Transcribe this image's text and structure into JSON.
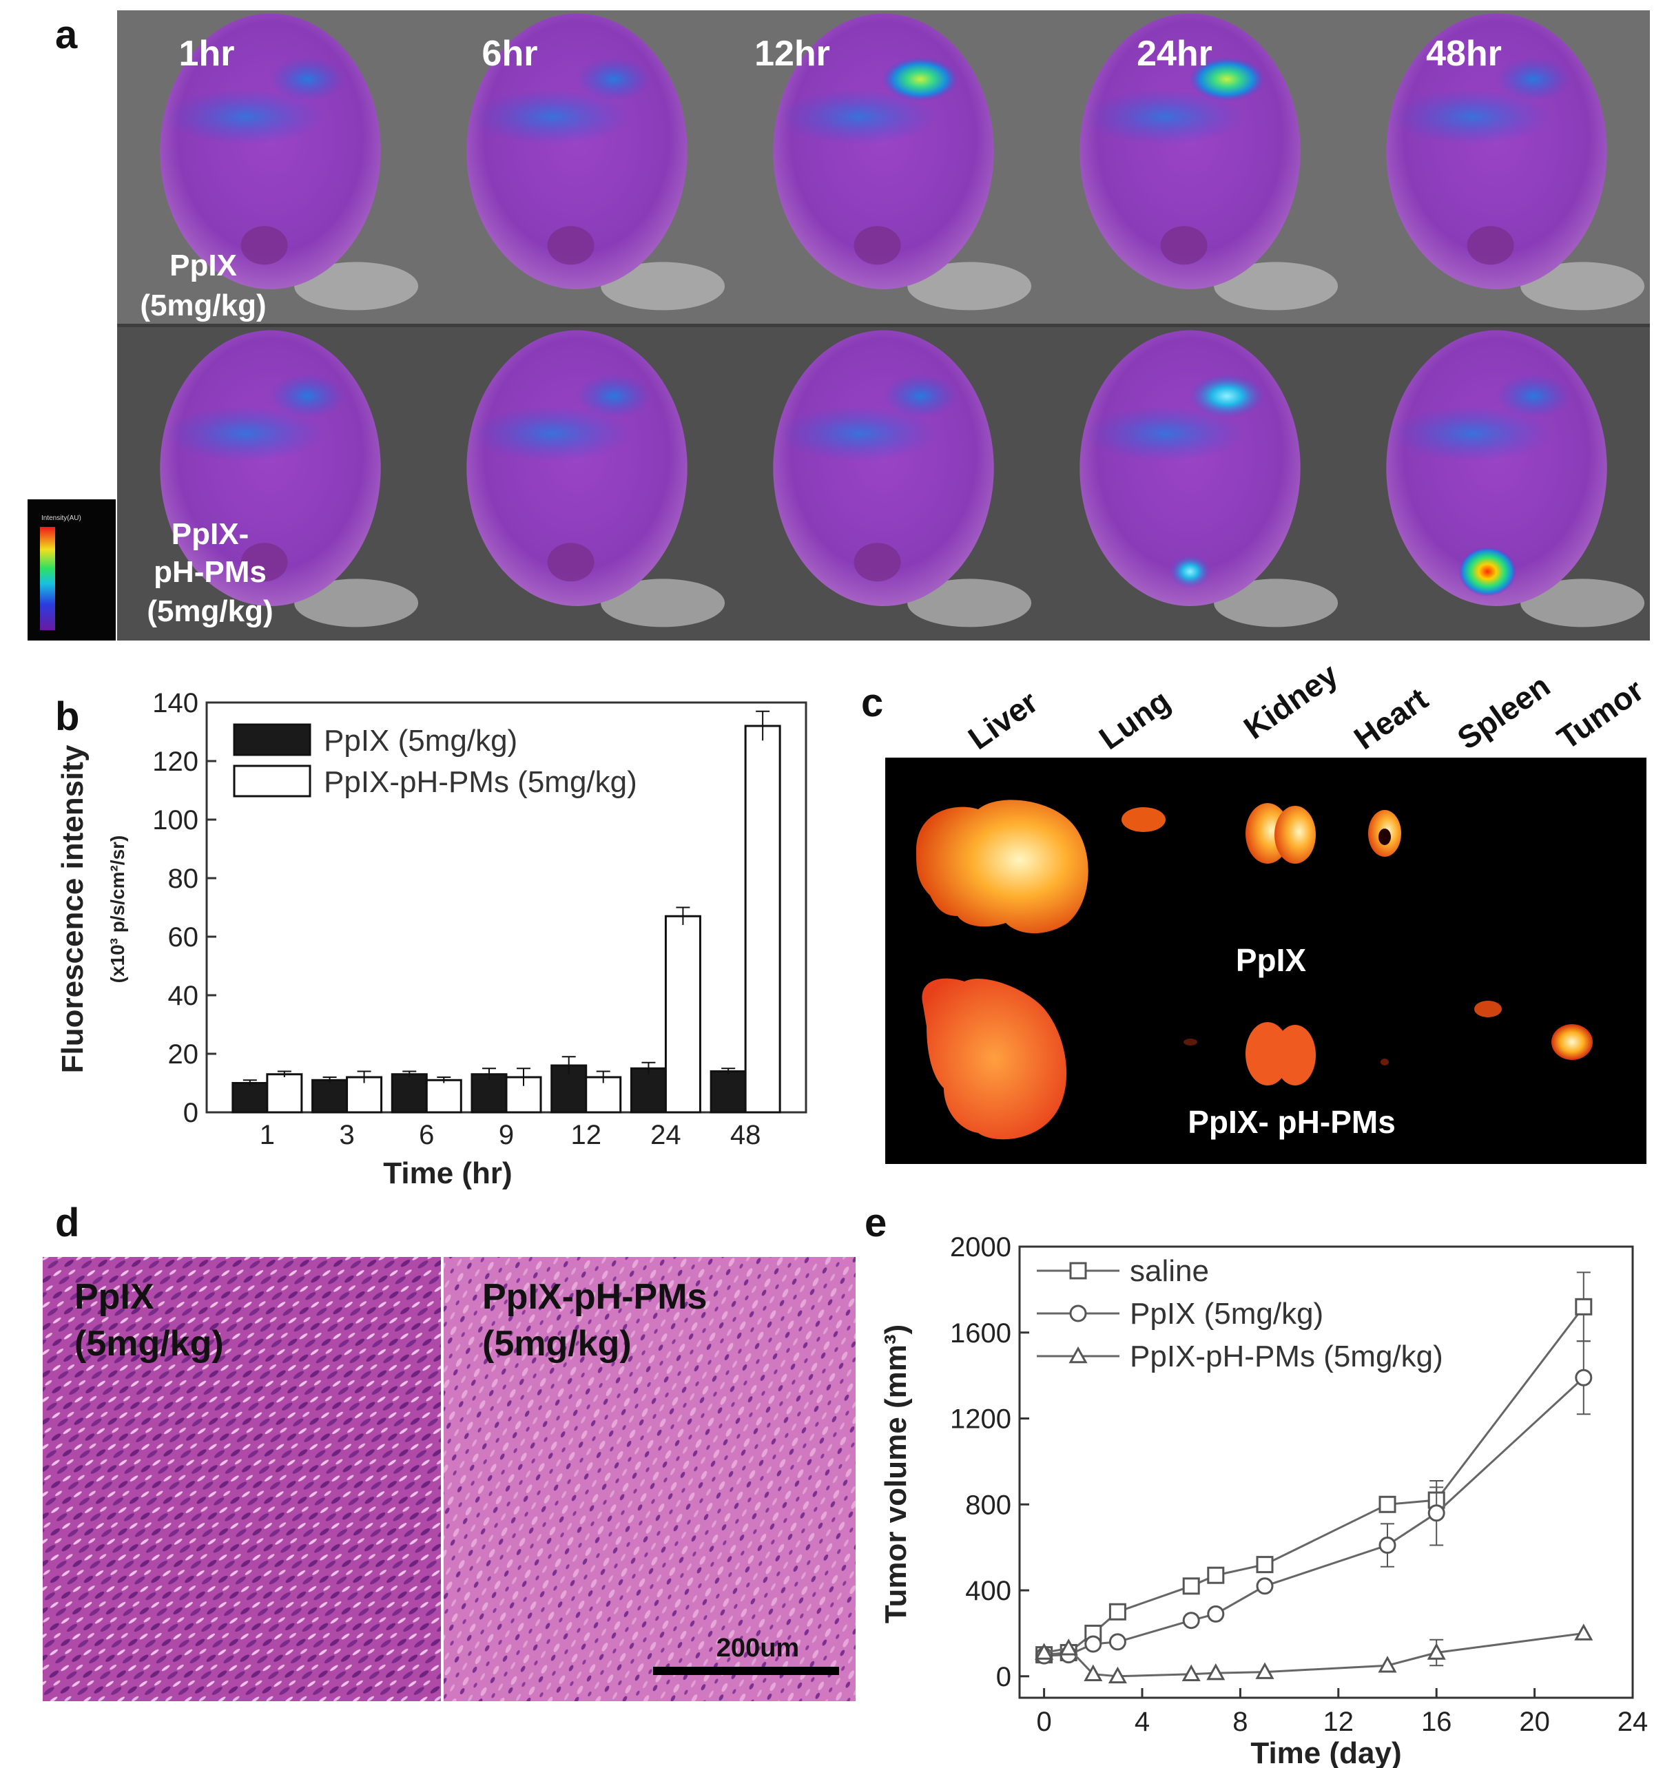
{
  "panels": {
    "a": {
      "label": "a",
      "times": [
        "1hr",
        "6hr",
        "12hr",
        "24hr",
        "48hr"
      ],
      "row1_label": [
        "PpIX",
        "(5mg/kg)"
      ],
      "row2_label": [
        "PpIX-",
        "pH-PMs",
        "(5mg/kg)"
      ],
      "colorbar_label": "Intensity(AU)"
    },
    "b": {
      "label": "b"
    },
    "c": {
      "label": "c",
      "organs": [
        "Liver",
        "Lung",
        "Kidney",
        "Heart",
        "Spleen",
        "Tumor"
      ],
      "row1_label": "PpIX",
      "row2_label": "PpIX-  pH-PMs"
    },
    "d": {
      "label": "d",
      "left_label": [
        "PpIX",
        "(5mg/kg)"
      ],
      "right_label": [
        "PpIX-pH-PMs",
        "(5mg/kg)"
      ],
      "scalebar": "200um"
    },
    "e": {
      "label": "e"
    }
  },
  "chart_data": [
    {
      "id": "b",
      "type": "bar",
      "categories": [
        "1",
        "3",
        "6",
        "9",
        "12",
        "24",
        "48"
      ],
      "series": [
        {
          "name": "PpIX (5mg/kg)",
          "values": [
            10,
            11,
            13,
            13,
            16,
            15,
            14
          ],
          "errors": [
            1,
            1,
            1,
            2,
            3,
            2,
            1
          ],
          "fill": "#1a1a1a"
        },
        {
          "name": "PpIX-pH-PMs (5mg/kg)",
          "values": [
            13,
            12,
            11,
            12,
            12,
            67,
            132
          ],
          "errors": [
            1,
            2,
            1,
            3,
            2,
            3,
            5
          ],
          "fill": "#ffffff"
        }
      ],
      "xlabel": "Time (hr)",
      "ylabel": "Fluorescence intensity",
      "ylabel_unit": "(x10³ p/s/cm²/sr)",
      "ylim": [
        0,
        140
      ],
      "yticks": [
        0,
        20,
        40,
        60,
        80,
        100,
        120,
        140
      ],
      "legend": "top-left"
    },
    {
      "id": "e",
      "type": "line",
      "xlabel": "Time (day)",
      "ylabel": "Tumor volume (mm³)",
      "xlim": [
        -1,
        24
      ],
      "ylim": [
        -100,
        2000
      ],
      "xticks": [
        0,
        4,
        8,
        12,
        16,
        20,
        24
      ],
      "yticks": [
        0,
        400,
        800,
        1200,
        1600,
        2000
      ],
      "legend": "top-left",
      "series": [
        {
          "name": "saline",
          "marker": "square",
          "x": [
            0,
            1,
            2,
            3,
            6,
            7,
            9,
            14,
            16,
            22
          ],
          "y": [
            100,
            110,
            200,
            300,
            420,
            470,
            520,
            800,
            820,
            1720
          ],
          "err": [
            0,
            0,
            0,
            0,
            0,
            0,
            0,
            0,
            60,
            160
          ]
        },
        {
          "name": "PpIX (5mg/kg)",
          "marker": "circle",
          "x": [
            0,
            1,
            2,
            3,
            6,
            7,
            9,
            14,
            16,
            22
          ],
          "y": [
            95,
            100,
            150,
            160,
            260,
            290,
            420,
            610,
            760,
            1390
          ],
          "err": [
            0,
            0,
            0,
            0,
            0,
            0,
            0,
            100,
            150,
            170
          ]
        },
        {
          "name": "PpIX-pH-PMs (5mg/kg)",
          "marker": "triangle",
          "x": [
            0,
            1,
            2,
            3,
            6,
            7,
            9,
            14,
            16,
            22
          ],
          "y": [
            110,
            130,
            10,
            0,
            10,
            15,
            20,
            50,
            110,
            200
          ],
          "err": [
            0,
            0,
            0,
            0,
            0,
            0,
            0,
            0,
            60,
            0
          ]
        }
      ]
    }
  ]
}
